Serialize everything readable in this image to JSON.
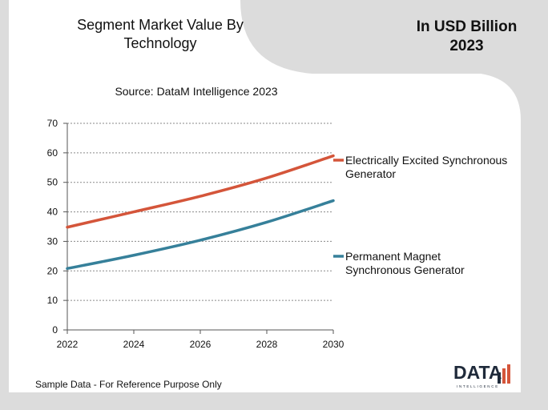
{
  "header": {
    "title_line1": "Segment Market Value By",
    "title_line2": "Technology",
    "units_line1": "In USD Billion",
    "units_line2": "2023",
    "source": "Source: DataM Intelligence  2023"
  },
  "footer": {
    "note": "Sample Data - For Reference Purpose Only",
    "logo_word": "DATA",
    "logo_sub": "INTELLIGENCE"
  },
  "chart_data": {
    "type": "line",
    "x": [
      2022,
      2024,
      2026,
      2028,
      2030
    ],
    "xlim": [
      2022,
      2030
    ],
    "ylim": [
      0,
      70
    ],
    "yticks": [
      0,
      10,
      20,
      30,
      40,
      50,
      60,
      70
    ],
    "xticks": [
      "2022",
      "2024",
      "2026",
      "2028",
      "2030"
    ],
    "grid": "horizontal dotted",
    "legend": "right",
    "series": [
      {
        "name_lines": [
          "Electrically Excited Synchronous",
          "Generator"
        ],
        "color": "#d4553a",
        "values": [
          34.8,
          40.0,
          45.3,
          51.5,
          59.0
        ]
      },
      {
        "name_lines": [
          "Permanent Magnet",
          "Synchronous Generator"
        ],
        "color": "#36809a",
        "values": [
          20.8,
          25.3,
          30.4,
          36.5,
          43.8
        ]
      }
    ]
  }
}
